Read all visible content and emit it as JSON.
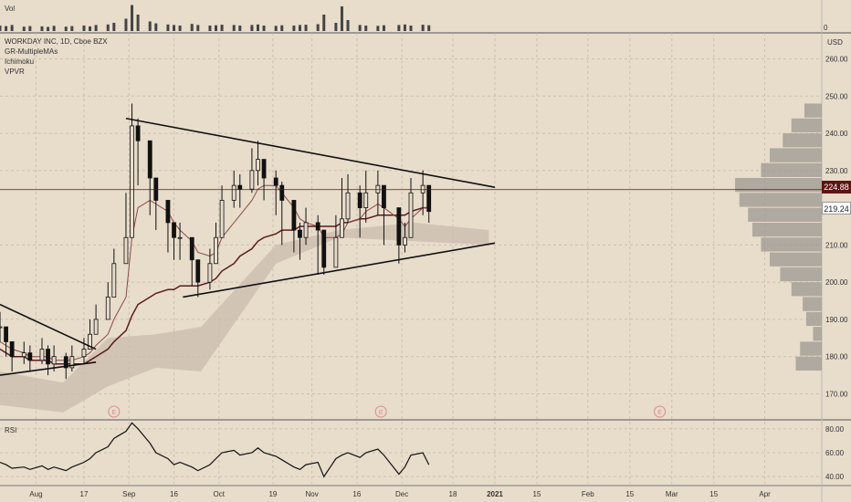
{
  "symbol": {
    "title": "WORKDAY INC, 1D, Cboe BZX",
    "indicators": [
      "GR-MultipleMAs",
      "Ichimoku",
      "VPVR"
    ]
  },
  "volume_pane": {
    "label": "Vol",
    "zero_label": "0"
  },
  "price_axis": {
    "currency": "USD",
    "ticks": [
      "260.00",
      "250.00",
      "240.00",
      "230.00",
      "210.00",
      "200.00",
      "190.00",
      "180.00",
      "170.00"
    ],
    "last_price": "224.88",
    "crosshair_price": "219.24"
  },
  "rsi_pane": {
    "label": "RSI",
    "ticks": [
      "80.00",
      "60.00",
      "40.00"
    ]
  },
  "time_axis": {
    "labels": [
      "Aug",
      "17",
      "Sep",
      "16",
      "Oct",
      "19",
      "Nov",
      "16",
      "Dec",
      "18",
      "2021",
      "15",
      "Feb",
      "15",
      "Mar",
      "15",
      "Apr"
    ]
  },
  "earnings_markers": [
    "E",
    "E",
    "E"
  ],
  "colors": {
    "background": "#e8dccb",
    "grid": "#cbbfae",
    "candle": "#111111",
    "ma_fast": "#8b4a4a",
    "ma_slow": "#5a1c1c",
    "cloud": "#cbbcad",
    "vpvr": "#9e9890",
    "last_price_bg": "#5e1414",
    "rsi_line": "#111111",
    "earnings": "#d98c8c"
  },
  "chart_data": {
    "type": "candlestick",
    "x_range": [
      "2020-07-20",
      "2021-04-20"
    ],
    "y_range": [
      163,
      267
    ],
    "dates": [
      "2020-07-20",
      "2020-07-22",
      "2020-07-24",
      "2020-07-28",
      "2020-07-30",
      "2020-08-03",
      "2020-08-05",
      "2020-08-07",
      "2020-08-11",
      "2020-08-13",
      "2020-08-17",
      "2020-08-19",
      "2020-08-21",
      "2020-08-25",
      "2020-08-27",
      "2020-08-31",
      "2020-09-02",
      "2020-09-04",
      "2020-09-08",
      "2020-09-10",
      "2020-09-14",
      "2020-09-16",
      "2020-09-18",
      "2020-09-22",
      "2020-09-24",
      "2020-09-28",
      "2020-09-30",
      "2020-10-02",
      "2020-10-06",
      "2020-10-08",
      "2020-10-12",
      "2020-10-14",
      "2020-10-16",
      "2020-10-20",
      "2020-10-22",
      "2020-10-26",
      "2020-10-28",
      "2020-10-30",
      "2020-11-03",
      "2020-11-05",
      "2020-11-09",
      "2020-11-11",
      "2020-11-13",
      "2020-11-17",
      "2020-11-19",
      "2020-11-23",
      "2020-11-25",
      "2020-11-30",
      "2020-12-02",
      "2020-12-04",
      "2020-12-08",
      "2020-12-10"
    ],
    "close": [
      188,
      184,
      180,
      181,
      179,
      182,
      178,
      180,
      177,
      180,
      182,
      186,
      190,
      196,
      205,
      212,
      242,
      238,
      228,
      222,
      216,
      212,
      212,
      206,
      200,
      205,
      212,
      222,
      226,
      225,
      230,
      233,
      228,
      226,
      222,
      214,
      212,
      216,
      214,
      204,
      212,
      217,
      224,
      220,
      224,
      226,
      220,
      210,
      212,
      224,
      226,
      219
    ],
    "high": [
      192,
      188,
      184,
      184,
      183,
      185,
      183,
      183,
      181,
      183,
      185,
      190,
      194,
      200,
      209,
      224,
      248,
      244,
      234,
      226,
      220,
      216,
      216,
      212,
      206,
      209,
      216,
      226,
      230,
      229,
      236,
      238,
      233,
      230,
      227,
      219,
      216,
      220,
      218,
      210,
      218,
      228,
      229,
      226,
      230,
      230,
      226,
      218,
      216,
      228,
      230,
      226
    ],
    "low": [
      184,
      180,
      176,
      178,
      176,
      178,
      175,
      176,
      174,
      176,
      178,
      182,
      186,
      192,
      200,
      206,
      236,
      226,
      218,
      214,
      208,
      206,
      206,
      199,
      196,
      198,
      206,
      214,
      220,
      220,
      224,
      226,
      222,
      218,
      210,
      208,
      206,
      210,
      202,
      202,
      206,
      212,
      216,
      212,
      216,
      218,
      210,
      205,
      208,
      212,
      218,
      216
    ],
    "ma_fast": [
      184,
      183,
      182,
      181,
      180,
      180,
      180,
      179,
      179,
      179,
      180,
      181,
      183,
      186,
      190,
      196,
      212,
      220,
      222,
      221,
      219,
      216,
      214,
      211,
      208,
      207,
      208,
      212,
      216,
      218,
      222,
      225,
      226,
      226,
      224,
      220,
      217,
      216,
      215,
      212,
      212,
      213,
      216,
      217,
      219,
      221,
      220,
      217,
      215,
      217,
      220,
      220
    ],
    "ma_slow": [
      182,
      181,
      180,
      180,
      179,
      179,
      179,
      178,
      178,
      178,
      178,
      179,
      180,
      182,
      184,
      187,
      191,
      194,
      196,
      197,
      198,
      198,
      199,
      199,
      199,
      200,
      201,
      203,
      205,
      207,
      209,
      211,
      212,
      213,
      214,
      214,
      215,
      215,
      215,
      215,
      215,
      216,
      216,
      217,
      217,
      218,
      218,
      218,
      218,
      219,
      220,
      220
    ],
    "volume": [
      20,
      18,
      22,
      16,
      18,
      17,
      15,
      19,
      16,
      18,
      20,
      17,
      22,
      24,
      30,
      45,
      95,
      60,
      35,
      28,
      24,
      22,
      20,
      26,
      22,
      20,
      21,
      23,
      22,
      20,
      22,
      24,
      20,
      19,
      21,
      20,
      22,
      23,
      25,
      60,
      30,
      90,
      40,
      22,
      20,
      19,
      21,
      22,
      24,
      20,
      23,
      21
    ],
    "rsi": [
      52,
      50,
      47,
      48,
      46,
      49,
      46,
      48,
      45,
      48,
      52,
      55,
      60,
      65,
      72,
      78,
      85,
      80,
      68,
      60,
      55,
      50,
      52,
      48,
      45,
      50,
      55,
      60,
      62,
      58,
      60,
      64,
      60,
      57,
      54,
      48,
      46,
      50,
      52,
      40,
      55,
      58,
      60,
      56,
      60,
      63,
      58,
      42,
      48,
      58,
      60,
      50
    ],
    "vpvr_levels": [
      178,
      182,
      186,
      190,
      194,
      198,
      202,
      206,
      210,
      214,
      218,
      222,
      226,
      230,
      234,
      238,
      242,
      246
    ],
    "vpvr_volume": [
      30,
      25,
      10,
      18,
      22,
      35,
      48,
      60,
      70,
      80,
      85,
      95,
      100,
      70,
      60,
      45,
      35,
      20
    ]
  }
}
